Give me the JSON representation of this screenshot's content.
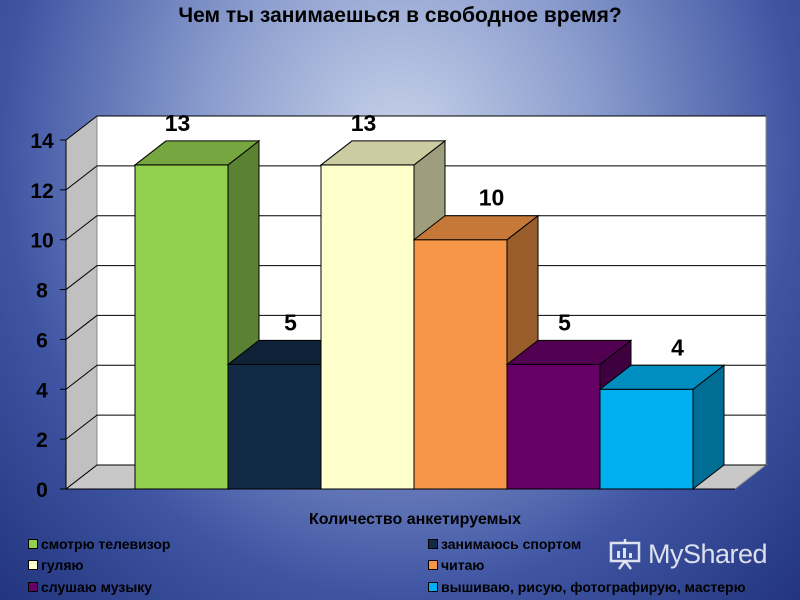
{
  "chart_data": {
    "type": "bar",
    "title": "Чем ты занимаешься в свободное время?",
    "xlabel": "Количество анкетируемых",
    "ylabel": "",
    "ylim": [
      0,
      14
    ],
    "yticks": [
      "0",
      "2",
      "4",
      "6",
      "8",
      "10",
      "12",
      "14"
    ],
    "three_d": true,
    "grid": true,
    "legend_position": "bottom",
    "series": [
      {
        "name": "смотрю телевизор",
        "value": 13,
        "label": "13",
        "color": "#92d050"
      },
      {
        "name": "занимаюсь спортом",
        "value": 5,
        "label": "5",
        "color": "#132a46"
      },
      {
        "name": "гуляю",
        "value": 13,
        "label": "13",
        "color": "#ffffcc"
      },
      {
        "name": "читаю",
        "value": 10,
        "label": "10",
        "color": "#f79646"
      },
      {
        "name": "слушаю музыку",
        "value": 5,
        "label": "5",
        "color": "#660066"
      },
      {
        "name": "вышиваю, рисую, фотографирую, мастерю",
        "value": 4,
        "label": "4",
        "color": "#00b0f0"
      }
    ]
  },
  "watermark": {
    "text": "MyShared",
    "icon": "presentation-board-icon"
  }
}
